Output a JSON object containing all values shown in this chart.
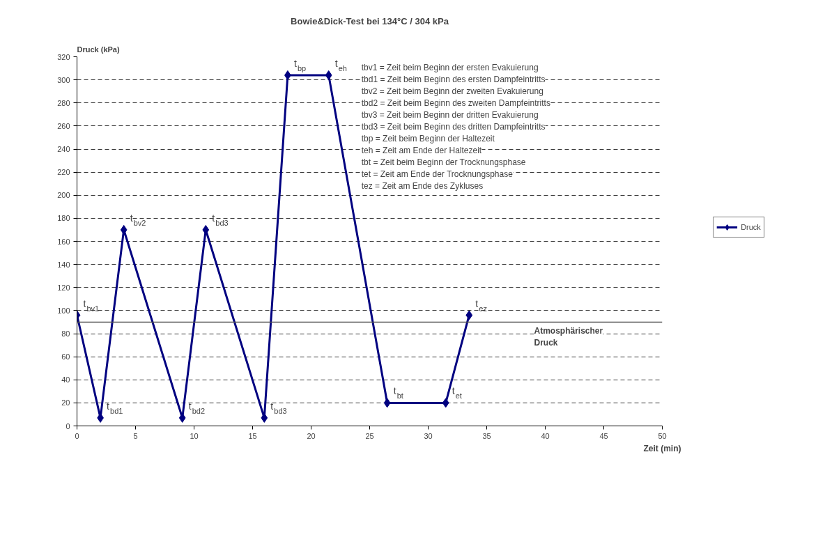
{
  "chart_data": {
    "type": "line",
    "title": "Bowie&Dick-Test bei 134°C / 304 kPa",
    "xlabel": "Zeit (min)",
    "ylabel": "Druck (kPa)",
    "x": [
      0,
      2,
      4,
      9,
      11,
      16,
      18,
      21.5,
      26.5,
      31.5,
      33.5
    ],
    "series": [
      {
        "name": "Druck",
        "color": "#000080",
        "values": [
          96,
          7,
          170,
          7,
          170,
          7,
          304,
          304,
          20,
          20,
          96
        ]
      }
    ],
    "xlim": [
      0,
      50
    ],
    "ylim": [
      0,
      320
    ],
    "xticks": [
      0,
      5,
      10,
      15,
      20,
      25,
      30,
      35,
      40,
      45,
      50
    ],
    "yticks": [
      0,
      20,
      40,
      60,
      80,
      100,
      120,
      140,
      160,
      180,
      200,
      220,
      240,
      260,
      280,
      300,
      320
    ],
    "grid": "y",
    "legend": "right",
    "marker": "diamond",
    "line_style": "solid",
    "ref_lines": [
      {
        "axis": "y",
        "value": 90,
        "label": "Atmosphärischer Druck",
        "color": "#555555"
      }
    ],
    "annotations": [
      {
        "text": "t$_{bv1}$",
        "x": 0,
        "y": 96
      },
      {
        "text": "t$_{bd1}$",
        "x": 2,
        "y": 7
      },
      {
        "text": "t$_{bv2}$",
        "x": 4,
        "y": 170
      },
      {
        "text": "t$_{bd2}$",
        "x": 9,
        "y": 7
      },
      {
        "text": "t$_{bd3}$",
        "x": 11,
        "y": 170
      },
      {
        "text": "t$_{bd3}$",
        "x": 16,
        "y": 7
      },
      {
        "text": "t$_{bp}$",
        "x": 18,
        "y": 304
      },
      {
        "text": "t$_{eh}$",
        "x": 21.5,
        "y": 304
      },
      {
        "text": "t$_{bt}$",
        "x": 26.5,
        "y": 20
      },
      {
        "text": "t$_{et}$",
        "x": 31.5,
        "y": 20
      },
      {
        "text": "t$_{ez}$",
        "x": 33.5,
        "y": 96
      },
      "tbv1 = Zeit beim Beginn der ersten Evakuierung",
      "tbd1 = Zeit beim Beginn des ersten Dampfeintritts",
      "tbv2 = Zeit beim Beginn der zweiten Evakuierung",
      "tbd2 = Zeit beim Beginn des zweiten Dampfeintritts",
      "tbv3 = Zeit beim Beginn der dritten Evakuierung",
      "tbd3 = Zeit beim Beginn des dritten Dampfeintritts",
      "tbp = Zeit beim Beginn der Haltezeit",
      "teh = Zeit am Ende der Haltezeit",
      "tbt = Zeit beim Beginn der Trocknungsphase",
      "tet = Zeit am Ende der Trocknungsphase",
      "tez = Zeit am Ende des Zykluses"
    ]
  }
}
